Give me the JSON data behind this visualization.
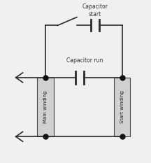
{
  "bg_color": "#f0f0f0",
  "line_color": "#2a2a2a",
  "box_fill": "#d0d0d0",
  "box_edge": "#444444",
  "dot_color": "#111111",
  "fig_width": 2.16,
  "fig_height": 2.33,
  "dpi": 100,
  "main_winding_label": "Main winding",
  "start_winding_label": "Start winding",
  "cap_run_label": "Capacitor run",
  "cap_start_label": "Capacitor\nstart",
  "font_size": 5.5,
  "label_font_size": 5.0
}
